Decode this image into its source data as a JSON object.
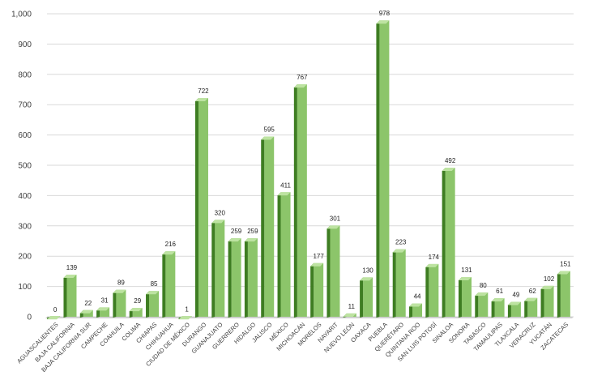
{
  "chart_data": {
    "type": "bar",
    "style": "3d-column",
    "title": "",
    "xlabel": "",
    "ylabel": "",
    "ylim": [
      0,
      1000
    ],
    "yticks": [
      0,
      100,
      200,
      300,
      400,
      500,
      600,
      700,
      800,
      900,
      1000
    ],
    "ytick_labels": [
      "0",
      "100",
      "200",
      "300",
      "400",
      "500",
      "600",
      "700",
      "800",
      "900",
      "1,000"
    ],
    "grid": true,
    "legend": "none",
    "categories": [
      "AGUASCALIENTES",
      "BAJA CALIFORNIA",
      "BAJA CALIFORNIA SUR",
      "CAMPECHE",
      "COAHUILA",
      "COLIMA",
      "CHIAPAS",
      "CHIHUAHUA",
      "CIUDAD DE MÉXICO",
      "DURANGO",
      "GUANAJUATO",
      "GUERRERO",
      "HIDALGO",
      "JALISCO",
      "MÉXICO",
      "MICHOACÁN",
      "MORELOS",
      "NAYARIT",
      "NUEVO LEÓN",
      "OAXACA",
      "PUEBLA",
      "QUERÉTARO",
      "QUINTANA ROO",
      "SAN LUIS POTOSÍ",
      "SINALOA",
      "SONORA",
      "TABASCO",
      "TAMAULIPAS",
      "TLAXCALA",
      "VERACRUZ",
      "YUCATÁN",
      "ZACATECAS"
    ],
    "values": [
      0,
      139,
      22,
      31,
      89,
      29,
      85,
      216,
      1,
      722,
      320,
      259,
      259,
      595,
      411,
      767,
      177,
      301,
      11,
      130,
      978,
      223,
      44,
      174,
      492,
      131,
      80,
      61,
      49,
      62,
      102,
      151
    ],
    "colors": {
      "bar_front": "#8cc56a",
      "bar_top": "#bde3a1",
      "bar_side": "#3e7d22",
      "gridline": "#d9d9d9",
      "tick_text": "#404040",
      "label_text": "#222222"
    }
  }
}
